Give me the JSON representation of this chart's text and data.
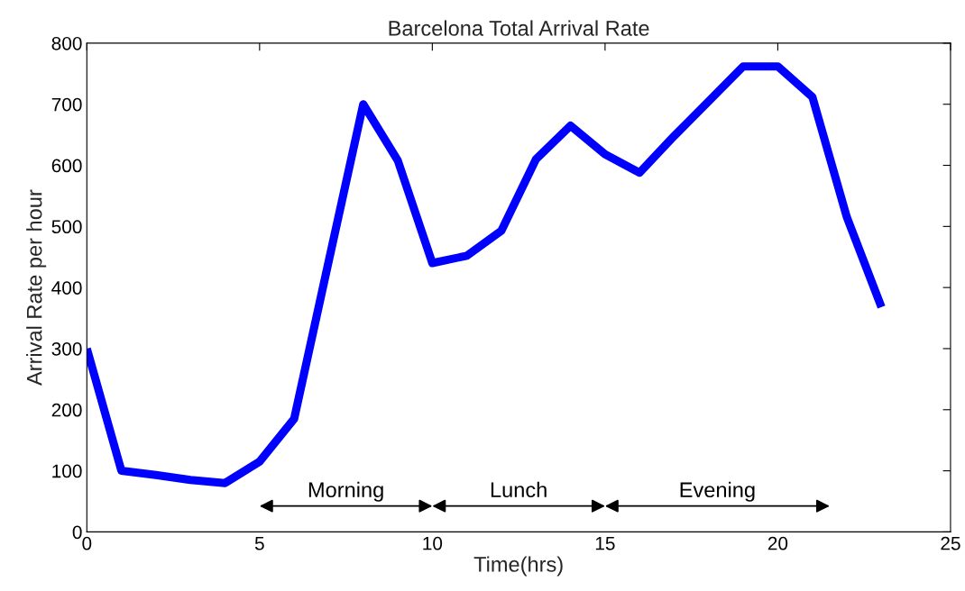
{
  "chart_data": {
    "type": "line",
    "title": "Barcelona Total Arrival Rate",
    "xlabel": "Time(hrs)",
    "ylabel": "Arrival Rate per hour",
    "x": [
      0,
      1,
      2,
      3,
      4,
      5,
      6,
      7,
      8,
      9,
      10,
      11,
      12,
      13,
      14,
      15,
      16,
      17,
      18,
      19,
      20,
      21,
      22,
      23
    ],
    "series": [
      {
        "color": "#0000ff",
        "values": [
          300,
          100,
          93,
          85,
          80,
          115,
          185,
          443,
          700,
          608,
          440,
          452,
          493,
          610,
          665,
          618,
          588,
          648,
          705,
          762,
          762,
          712,
          515,
          368
        ]
      }
    ],
    "annotations": [
      "Morning",
      "Lunch",
      "Evening"
    ],
    "xlim": [
      0,
      25
    ],
    "xticks": [
      0,
      5,
      10,
      15,
      20,
      25
    ],
    "ylim": [
      0,
      800
    ],
    "yticks": [
      0,
      100,
      200,
      300,
      400,
      500,
      600,
      700,
      800
    ],
    "grid": false,
    "legend": false,
    "marker": "none",
    "line_style": "solid"
  }
}
